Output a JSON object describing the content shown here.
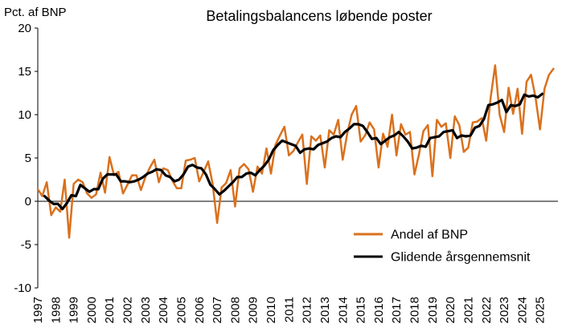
{
  "chart_data": {
    "type": "line",
    "title": "Betalingsbalancens løbende poster",
    "ylabel": "Pct. af BNP",
    "ylim": [
      -10,
      20
    ],
    "yticks": [
      20,
      15,
      10,
      5,
      0,
      -5,
      -10
    ],
    "ytick_labels": [
      "20",
      "15",
      "10",
      "5",
      "0",
      "-5",
      "-10"
    ],
    "xlim": [
      1997,
      2026
    ],
    "xticks": [
      1997,
      1998,
      1999,
      2000,
      2001,
      2002,
      2003,
      2004,
      2005,
      2006,
      2007,
      2008,
      2009,
      2010,
      2011,
      2012,
      2013,
      2014,
      2015,
      2016,
      2017,
      2018,
      2019,
      2020,
      2021,
      2022,
      2023,
      2024,
      2025
    ],
    "xtick_labels": [
      "1997",
      "1998",
      "1999",
      "2000",
      "2001",
      "2002",
      "2003",
      "2004",
      "2005",
      "2006",
      "2007",
      "2008",
      "2009",
      "2010",
      "2011",
      "2012",
      "2013",
      "2014",
      "2015",
      "2016",
      "2017",
      "2018",
      "2019",
      "2020",
      "2021",
      "2022",
      "2023",
      "2024",
      "2025"
    ],
    "grid": false,
    "legend_position": "lower-right",
    "series": [
      {
        "name": "Andel af BNP",
        "color": "#D9711E",
        "x_start": 1997.0,
        "x_step": 0.25,
        "values": [
          1.4,
          0.6,
          2.2,
          -1.6,
          -0.7,
          -1.2,
          2.5,
          -4.2,
          2.0,
          2.5,
          2.2,
          0.9,
          0.4,
          0.8,
          3.3,
          1.0,
          5.1,
          3.0,
          3.4,
          0.9,
          1.9,
          3.0,
          3.0,
          1.3,
          2.8,
          3.9,
          4.8,
          2.2,
          3.8,
          3.6,
          2.4,
          1.5,
          1.5,
          4.7,
          4.8,
          5.0,
          2.3,
          3.4,
          4.6,
          2.0,
          -2.5,
          1.6,
          2.1,
          3.6,
          -0.6,
          3.8,
          4.3,
          3.7,
          1.1,
          4.0,
          3.2,
          6.1,
          3.2,
          6.5,
          7.6,
          8.6,
          5.3,
          5.8,
          6.8,
          7.7,
          2.0,
          7.5,
          7.0,
          7.6,
          3.9,
          8.2,
          7.7,
          9.4,
          4.8,
          7.8,
          10.0,
          11.0,
          6.9,
          7.6,
          9.1,
          8.3,
          3.9,
          7.8,
          6.3,
          10.0,
          5.3,
          8.9,
          7.7,
          8.0,
          3.1,
          5.4,
          8.1,
          8.8,
          2.9,
          9.4,
          8.6,
          9.0,
          5.0,
          9.8,
          8.8,
          5.7,
          6.2,
          9.1,
          9.2,
          9.6,
          7.0,
          12.0,
          15.7,
          10.0,
          8.0,
          13.1,
          10.1,
          13.0,
          7.8,
          13.8,
          14.6,
          12.0,
          8.3,
          13.0,
          14.6,
          15.3
        ]
      },
      {
        "name": "Glidende årsgennemsnit",
        "color": "#000000",
        "x_start": 1997.375,
        "x_step": 0.25,
        "values": [
          0.6,
          0.1,
          -0.3,
          -0.3,
          -0.9,
          -0.2,
          0.7,
          0.6,
          1.9,
          1.5,
          1.1,
          1.4,
          1.4,
          2.6,
          3.1,
          3.1,
          3.1,
          2.3,
          2.3,
          2.2,
          2.3,
          2.5,
          2.8,
          3.2,
          3.4,
          3.7,
          3.6,
          3.0,
          2.8,
          2.3,
          2.5,
          3.1,
          4.0,
          4.2,
          3.9,
          3.8,
          3.1,
          1.9,
          1.4,
          0.8,
          1.2,
          1.7,
          2.2,
          2.8,
          2.8,
          3.2,
          3.3,
          3.0,
          3.6,
          4.1,
          4.8,
          5.9,
          6.5,
          7.0,
          6.8,
          6.6,
          6.4,
          5.6,
          6.0,
          6.1,
          6.0,
          6.5,
          6.7,
          6.9,
          7.3,
          7.5,
          7.4,
          8.0,
          8.4,
          8.9,
          8.9,
          8.7,
          8.0,
          7.2,
          7.3,
          6.6,
          7.0,
          7.4,
          7.6,
          8.0,
          7.5,
          6.9,
          6.1,
          6.2,
          6.4,
          6.3,
          7.3,
          7.4,
          7.5,
          8.0,
          8.1,
          8.2,
          7.3,
          7.6,
          7.5,
          7.6,
          8.5,
          8.7,
          9.5,
          11.1,
          11.2,
          11.4,
          11.7,
          10.3,
          11.1,
          11.0,
          11.2,
          12.3,
          12.1,
          12.2,
          12.0,
          12.4
        ]
      }
    ]
  }
}
